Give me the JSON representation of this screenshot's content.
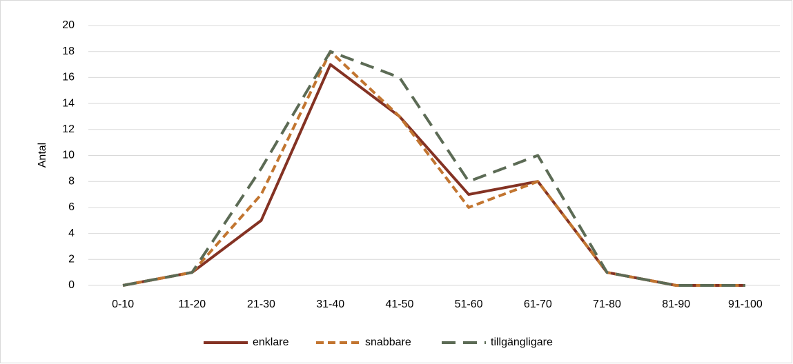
{
  "chart_data": {
    "type": "line",
    "y_label": "Antal",
    "categories": [
      "0-10",
      "11-20",
      "21-30",
      "31-40",
      "41-50",
      "51-60",
      "61-70",
      "71-80",
      "81-90",
      "91-100"
    ],
    "series": [
      {
        "name": "enklare",
        "color": "#843223",
        "dash": "solid",
        "values": [
          0,
          1,
          5,
          17,
          13,
          7,
          8,
          1,
          0,
          0
        ]
      },
      {
        "name": "snabbare",
        "color": "#c27530",
        "dash": "dashed",
        "values": [
          0,
          1,
          7,
          18,
          13,
          6,
          8,
          1,
          0,
          0
        ]
      },
      {
        "name": "tillgängligare",
        "color": "#5c6b55",
        "dash": "long-dash",
        "values": [
          0,
          1,
          9,
          18,
          16,
          8,
          10,
          1,
          0,
          0
        ]
      }
    ],
    "ylim": [
      0,
      20
    ],
    "yticks": [
      0,
      2,
      4,
      6,
      8,
      10,
      12,
      14,
      16,
      18,
      20
    ],
    "grid": true,
    "legend": "bottom"
  }
}
